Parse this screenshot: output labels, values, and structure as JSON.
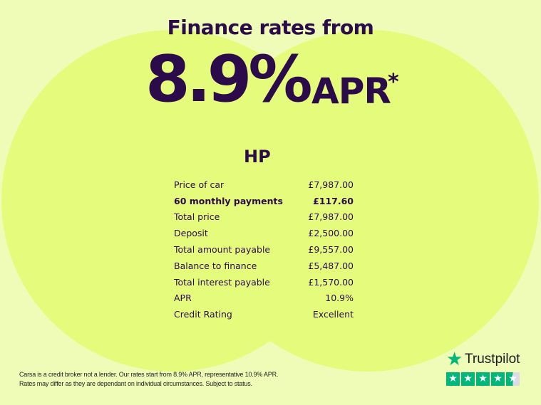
{
  "headline": "Finance rates from",
  "rate": "8.9%",
  "rate_suffix": "APR",
  "asterisk": "*",
  "product": "HP",
  "rows": [
    {
      "label": "Price of car",
      "value": "£7,987.00"
    },
    {
      "label": "60 monthly payments",
      "value": "£117.60",
      "bold": true
    },
    {
      "label": "Total price",
      "value": "£7,987.00"
    },
    {
      "label": "Deposit",
      "value": "£2,500.00"
    },
    {
      "label": "Total amount payable",
      "value": "£9,557.00"
    },
    {
      "label": "Balance to finance",
      "value": "£5,487.00"
    },
    {
      "label": "Total interest payable",
      "value": "£1,570.00"
    },
    {
      "label": "APR",
      "value": "10.9%"
    },
    {
      "label": "Credit Rating",
      "value": "Excellent"
    }
  ],
  "disclaimer": {
    "line1": "Carsa is a credit broker not a lender. Our rates start from 8.9% APR, representative 10.9% APR.",
    "line2": "Rates may differ as they are dependant on individual circumstances. Subject to status."
  },
  "trustpilot": {
    "name": "Trustpilot",
    "rating_stars": 4.5,
    "color": "#00b67a"
  },
  "colors": {
    "text": "#2b0b4a",
    "background": "#effcb8",
    "circles": "#e5fb7c"
  }
}
